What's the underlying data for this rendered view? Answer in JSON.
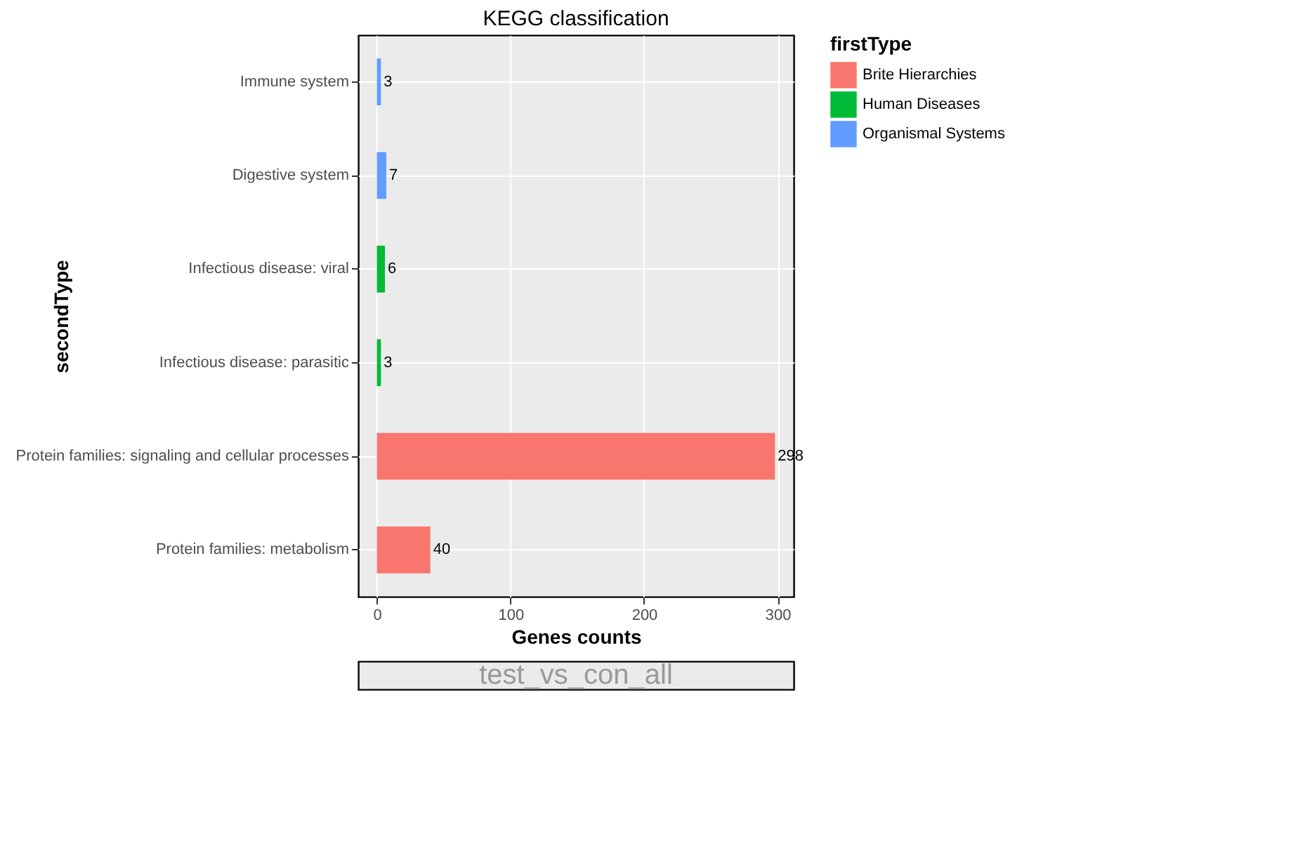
{
  "chart_data": {
    "type": "bar",
    "orientation": "horizontal",
    "title": "KEGG classification",
    "xlabel": "Genes counts",
    "ylabel": "secondType",
    "legend_title": "firstType",
    "categories": [
      "Immune system",
      "Digestive system",
      "Infectious disease: viral",
      "Infectious disease: parasitic",
      "Protein families: signaling and cellular processes",
      "Protein families: metabolism"
    ],
    "series": [
      {
        "name": "Brite Hierarchies",
        "color": "#f8766d",
        "values": [
          null,
          null,
          null,
          null,
          298,
          40
        ]
      },
      {
        "name": "Human Diseases",
        "color": "#00ba38",
        "values": [
          null,
          null,
          6,
          3,
          null,
          null
        ]
      },
      {
        "name": "Organismal Systems",
        "color": "#619cff",
        "values": [
          3,
          7,
          null,
          null,
          null,
          null
        ]
      }
    ],
    "xlim": [
      -14,
      312
    ],
    "xticks": [
      0,
      100,
      200,
      300
    ],
    "grid": true,
    "legend": "right",
    "data_labels": true,
    "annotations": [
      "test_vs_con_all"
    ]
  }
}
